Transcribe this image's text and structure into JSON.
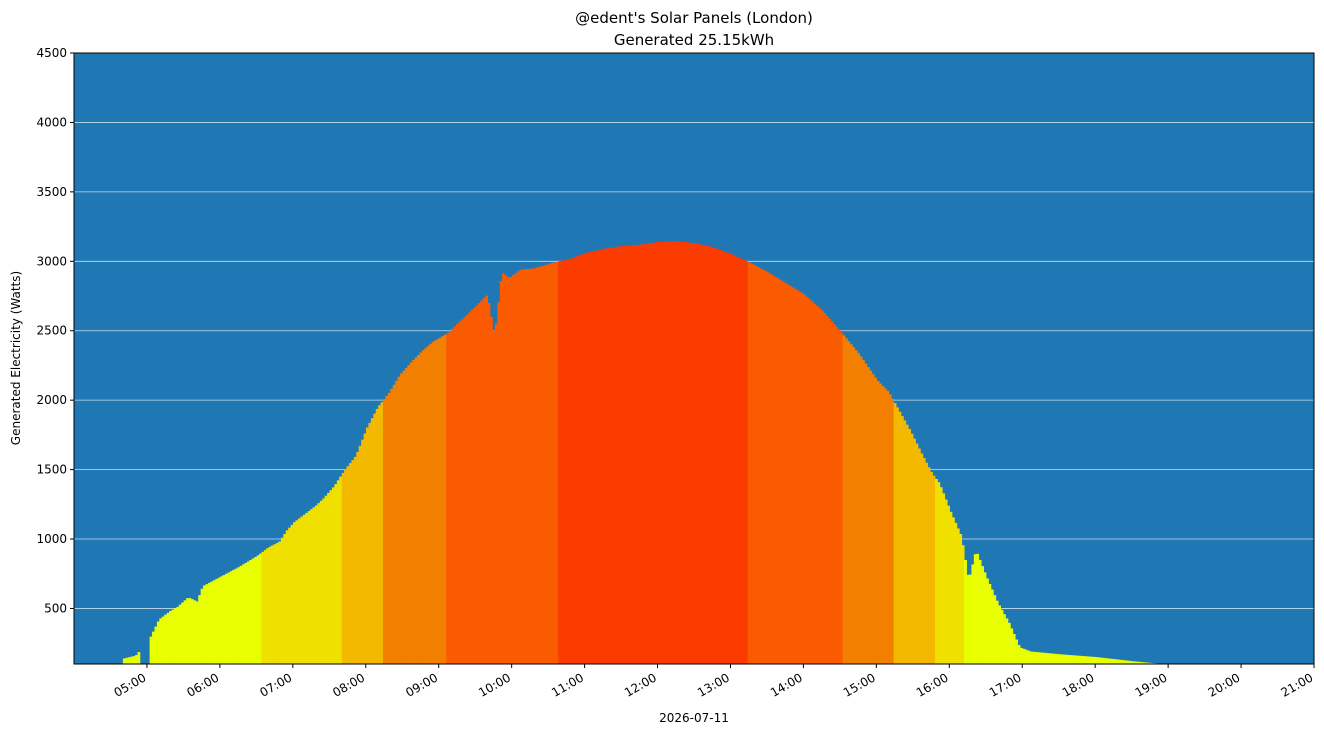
{
  "chart_data": {
    "type": "bar",
    "title": "@edent's Solar Panels (London)",
    "subtitle": "Generated 25.15kWh",
    "xlabel": "2026-07-11",
    "ylabel": "Generated Electricity (Watts)",
    "ylim": [
      100,
      4500
    ],
    "xlim_hours": [
      4.0,
      21.0
    ],
    "grid": "horizontal",
    "colors": {
      "background": "#1f77b4",
      "grid": "#ffffff",
      "low": "#e8ff00",
      "mid_low": "#f0e000",
      "mid": "#f3b800",
      "mid_high": "#f37f00",
      "high": "#fa5a00",
      "peak": "#fb3c00"
    },
    "yticks": [
      500,
      1000,
      1500,
      2000,
      2500,
      3000,
      3500,
      4000,
      4500
    ],
    "xticks": [
      {
        "hour": 5,
        "label": "05:00"
      },
      {
        "hour": 6,
        "label": "06:00"
      },
      {
        "hour": 7,
        "label": "07:00"
      },
      {
        "hour": 8,
        "label": "08:00"
      },
      {
        "hour": 9,
        "label": "09:00"
      },
      {
        "hour": 10,
        "label": "10:00"
      },
      {
        "hour": 11,
        "label": "11:00"
      },
      {
        "hour": 12,
        "label": "12:00"
      },
      {
        "hour": 13,
        "label": "13:00"
      },
      {
        "hour": 14,
        "label": "14:00"
      },
      {
        "hour": 15,
        "label": "15:00"
      },
      {
        "hour": 16,
        "label": "16:00"
      },
      {
        "hour": 17,
        "label": "17:00"
      },
      {
        "hour": 18,
        "label": "18:00"
      },
      {
        "hour": 19,
        "label": "19:00"
      },
      {
        "hour": 20,
        "label": "20:00"
      },
      {
        "hour": 21,
        "label": "21:00"
      }
    ],
    "points": [
      [
        4.67,
        140
      ],
      [
        4.83,
        160
      ],
      [
        5.03,
        290
      ],
      [
        5.15,
        420
      ],
      [
        5.3,
        480
      ],
      [
        5.4,
        510
      ],
      [
        5.55,
        580
      ],
      [
        5.67,
        550
      ],
      [
        5.75,
        660
      ],
      [
        6.0,
        730
      ],
      [
        6.25,
        800
      ],
      [
        6.5,
        880
      ],
      [
        6.65,
        940
      ],
      [
        6.8,
        980
      ],
      [
        6.9,
        1060
      ],
      [
        7.0,
        1120
      ],
      [
        7.15,
        1180
      ],
      [
        7.3,
        1240
      ],
      [
        7.4,
        1290
      ],
      [
        7.55,
        1380
      ],
      [
        7.7,
        1500
      ],
      [
        7.85,
        1600
      ],
      [
        8.0,
        1800
      ],
      [
        8.15,
        1950
      ],
      [
        8.3,
        2050
      ],
      [
        8.45,
        2180
      ],
      [
        8.6,
        2270
      ],
      [
        8.75,
        2350
      ],
      [
        8.9,
        2420
      ],
      [
        9.1,
        2480
      ],
      [
        9.3,
        2580
      ],
      [
        9.5,
        2680
      ],
      [
        9.65,
        2760
      ],
      [
        9.75,
        2460
      ],
      [
        9.85,
        2920
      ],
      [
        9.95,
        2880
      ],
      [
        10.1,
        2940
      ],
      [
        10.3,
        2950
      ],
      [
        10.55,
        2990
      ],
      [
        10.8,
        3020
      ],
      [
        11.0,
        3060
      ],
      [
        11.25,
        3090
      ],
      [
        11.5,
        3110
      ],
      [
        11.75,
        3120
      ],
      [
        12.0,
        3140
      ],
      [
        12.25,
        3145
      ],
      [
        12.5,
        3130
      ],
      [
        12.75,
        3100
      ],
      [
        13.0,
        3050
      ],
      [
        13.25,
        2990
      ],
      [
        13.5,
        2920
      ],
      [
        13.75,
        2840
      ],
      [
        14.0,
        2760
      ],
      [
        14.25,
        2640
      ],
      [
        14.5,
        2490
      ],
      [
        14.75,
        2330
      ],
      [
        15.0,
        2140
      ],
      [
        15.15,
        2060
      ],
      [
        15.3,
        1920
      ],
      [
        15.45,
        1780
      ],
      [
        15.6,
        1620
      ],
      [
        15.75,
        1470
      ],
      [
        15.85,
        1400
      ],
      [
        16.0,
        1200
      ],
      [
        16.15,
        1020
      ],
      [
        16.25,
        700
      ],
      [
        16.35,
        920
      ],
      [
        16.5,
        720
      ],
      [
        16.65,
        540
      ],
      [
        16.8,
        400
      ],
      [
        16.95,
        220
      ],
      [
        17.1,
        190
      ],
      [
        17.5,
        170
      ],
      [
        18.0,
        150
      ],
      [
        18.5,
        120
      ],
      [
        18.8,
        105
      ],
      [
        19.0,
        100
      ]
    ]
  }
}
